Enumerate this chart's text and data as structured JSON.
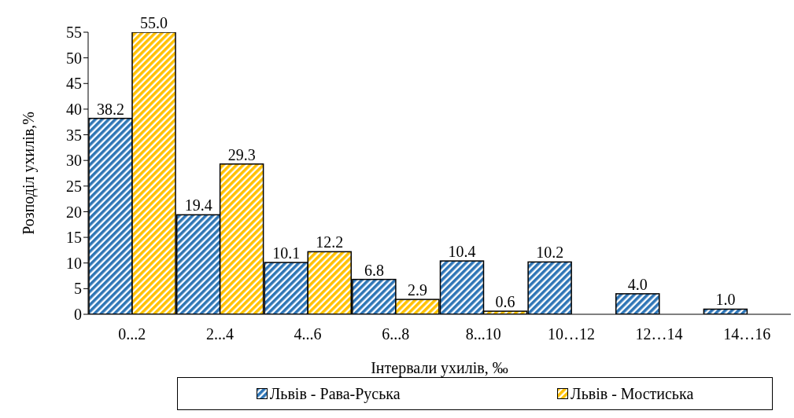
{
  "chart_data": {
    "type": "bar",
    "xlabel": "Інтервали ухилів, ‰",
    "ylabel": "Розподіл ухилів,%",
    "categories": [
      "0...2",
      "2...4",
      "4...6",
      "6...8",
      "8...10",
      "10…12",
      "12…14",
      "14…16"
    ],
    "series": [
      {
        "name": "Львів - Рава-Руська",
        "color": "#2e75b6",
        "values": [
          38.2,
          19.4,
          10.1,
          6.8,
          10.4,
          10.2,
          4.0,
          1.0
        ],
        "value_labels": [
          "38.2",
          "19.4",
          "10.1",
          "6.8",
          "10.4",
          "10.2",
          "4.0",
          "1.0"
        ]
      },
      {
        "name": "Львів - Мостиська",
        "color": "#ffc000",
        "values": [
          55.0,
          29.3,
          12.2,
          2.9,
          0.6,
          null,
          null,
          null
        ],
        "value_labels": [
          "55.0",
          "29.3",
          "12.2",
          "2.9",
          "0.6",
          null,
          null,
          null
        ]
      }
    ],
    "ylim": [
      0,
      55
    ],
    "yticks": [
      0,
      5,
      10,
      15,
      20,
      25,
      30,
      35,
      40,
      45,
      50,
      55
    ],
    "legend": "bottom"
  }
}
